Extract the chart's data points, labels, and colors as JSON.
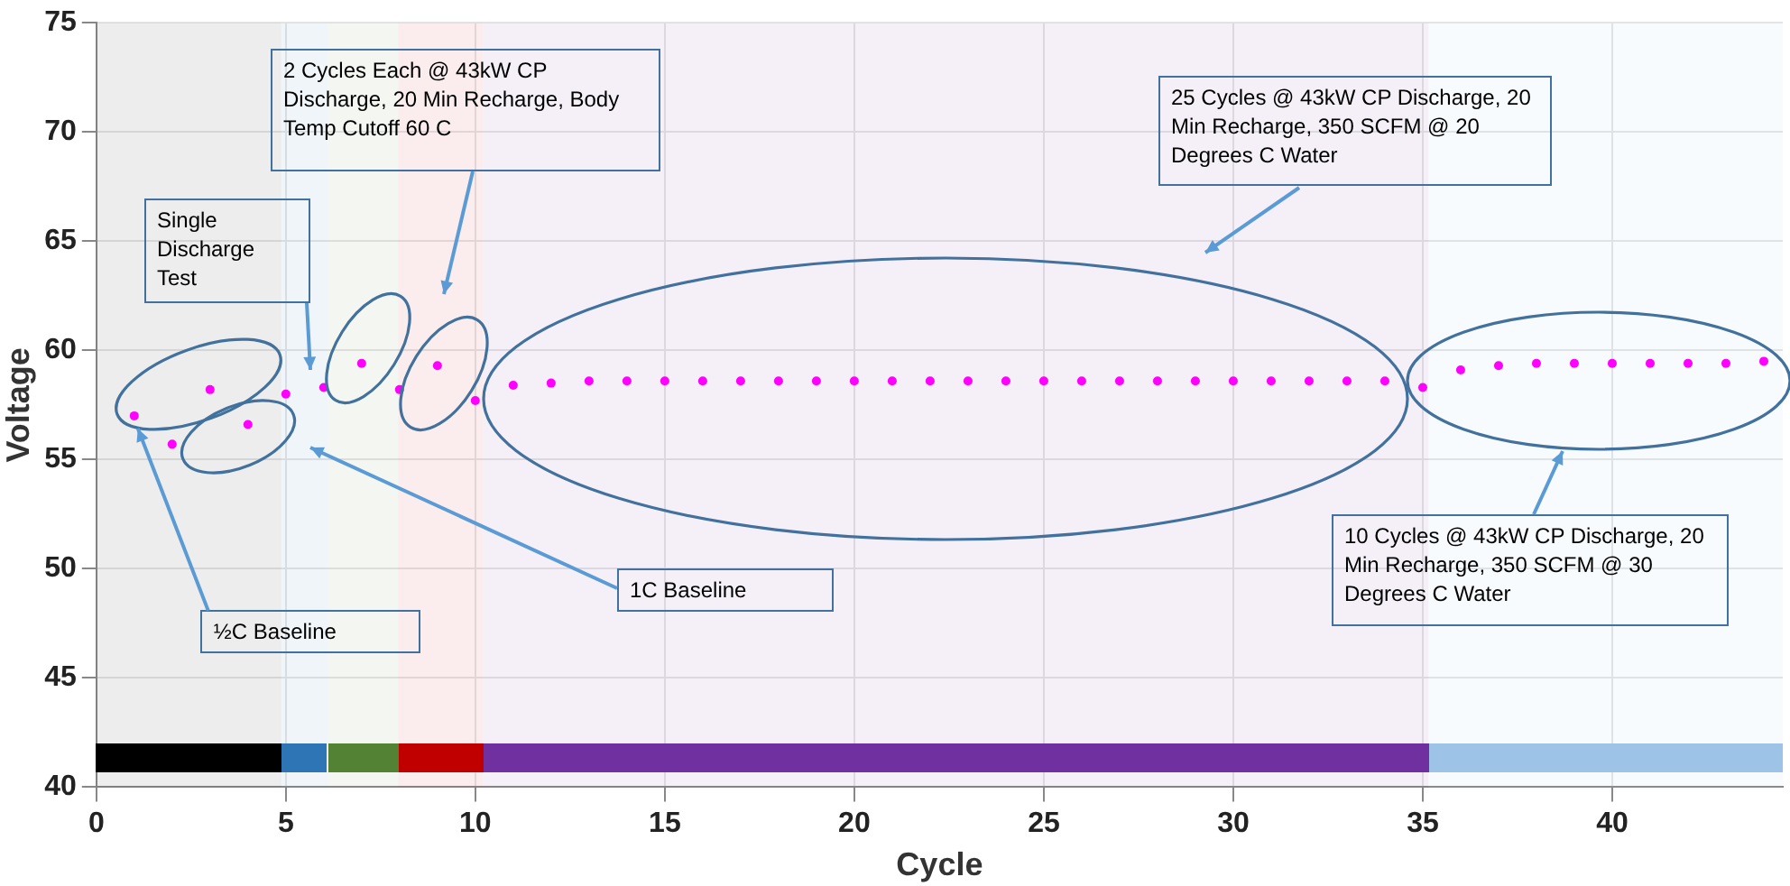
{
  "chart_data": {
    "type": "scatter",
    "xlabel": "Cycle",
    "ylabel": "Voltage",
    "x": [
      1,
      2,
      3,
      4,
      5,
      6,
      7,
      8,
      9,
      10,
      11,
      12,
      13,
      14,
      15,
      16,
      17,
      18,
      19,
      20,
      21,
      22,
      23,
      24,
      25,
      26,
      27,
      28,
      29,
      30,
      31,
      32,
      33,
      34,
      35,
      36,
      37,
      38,
      39,
      40,
      41,
      42,
      43,
      44
    ],
    "series": [
      {
        "color": "#ff00ff",
        "values": [
          57.0,
          55.7,
          58.2,
          56.6,
          58.0,
          58.3,
          59.4,
          58.2,
          59.3,
          57.7,
          58.4,
          58.5,
          58.6,
          58.6,
          58.6,
          58.6,
          58.6,
          58.6,
          58.6,
          58.6,
          58.6,
          58.6,
          58.6,
          58.6,
          58.6,
          58.6,
          58.6,
          58.6,
          58.6,
          58.6,
          58.6,
          58.6,
          58.6,
          58.6,
          58.3,
          59.1,
          59.3,
          59.4,
          59.4,
          59.4,
          59.4,
          59.4,
          59.4,
          59.5
        ]
      }
    ],
    "xlim": [
      0,
      44.5
    ],
    "xticks": [
      0,
      5,
      10,
      15,
      20,
      25,
      30,
      35,
      40
    ],
    "ylim": [
      40,
      75
    ],
    "yticks": [
      40,
      45,
      50,
      55,
      60,
      65,
      70,
      75
    ],
    "grid": true,
    "legend": false,
    "marker": "circle",
    "bands": [
      {
        "axis": "x",
        "from": 0,
        "to": 4.88,
        "color": "#000000"
      },
      {
        "axis": "x",
        "from": 4.88,
        "to": 6.1,
        "color": "#2e75b6"
      },
      {
        "axis": "x",
        "from": 6.1,
        "to": 7.96,
        "color": "#548235"
      },
      {
        "axis": "x",
        "from": 7.96,
        "to": 10.2,
        "color": "#c00000"
      },
      {
        "axis": "x",
        "from": 10.2,
        "to": 35.15,
        "color": "#7030a0"
      },
      {
        "axis": "x",
        "from": 35.15,
        "to": 44.5,
        "color": "#9dc3e6"
      }
    ],
    "annotations": [
      "Single Discharge Test",
      "2 Cycles Each @ 43kW CP Discharge, 20 Min Recharge, Body Temp Cutoff 60 C",
      "25 Cycles @ 43kW CP Discharge, 20 Min Recharge, 350 SCFM @ 20 Degrees C Water",
      "10 Cycles @ 43kW CP Discharge, 20 Min Recharge, 350 SCFM @ 30 Degrees C Water",
      "1C Baseline",
      {
        "text": "½C Baseline",
        "x": 1,
        "y": 57.0
      }
    ]
  }
}
